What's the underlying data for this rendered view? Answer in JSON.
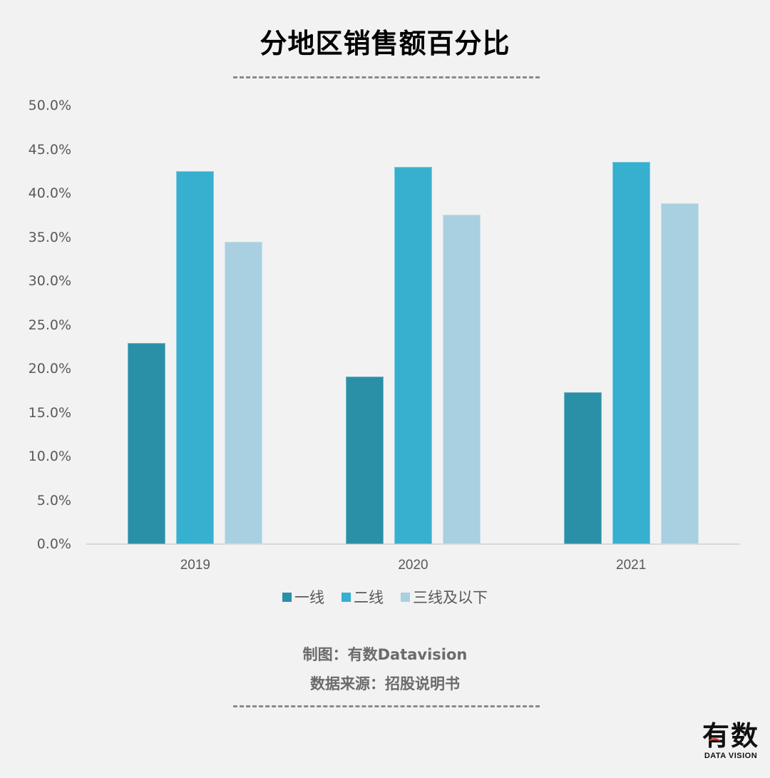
{
  "title": "分地区销售额百分比",
  "credits": {
    "made_by": "制图：有数Datavision",
    "source": "数据来源：招股说明书"
  },
  "logo": {
    "main": "有数",
    "sub": "DATA VISION"
  },
  "colors": {
    "tier1": "#2a90a8",
    "tier2": "#37afcf",
    "tier3": "#a8d0e1",
    "background": "#f2f2f2",
    "axis": "#d9d9d9"
  },
  "chart_data": {
    "type": "bar",
    "title": "分地区销售额百分比",
    "xlabel": "",
    "ylabel": "",
    "categories": [
      "2019",
      "2020",
      "2021"
    ],
    "series": [
      {
        "name": "一线",
        "values": [
          22.9,
          19.1,
          17.3
        ],
        "color": "#2a90a8"
      },
      {
        "name": "二线",
        "values": [
          42.5,
          43.0,
          43.6
        ],
        "color": "#37afcf"
      },
      {
        "name": "三线及以下",
        "values": [
          34.5,
          37.6,
          38.9
        ],
        "color": "#a8d0e1"
      }
    ],
    "ylim": [
      0,
      50
    ],
    "yticks": [
      "0.0%",
      "5.0%",
      "10.0%",
      "15.0%",
      "20.0%",
      "25.0%",
      "30.0%",
      "35.0%",
      "40.0%",
      "45.0%",
      "50.0%"
    ],
    "value_format": "percent",
    "grid": false,
    "legend_position": "bottom"
  }
}
